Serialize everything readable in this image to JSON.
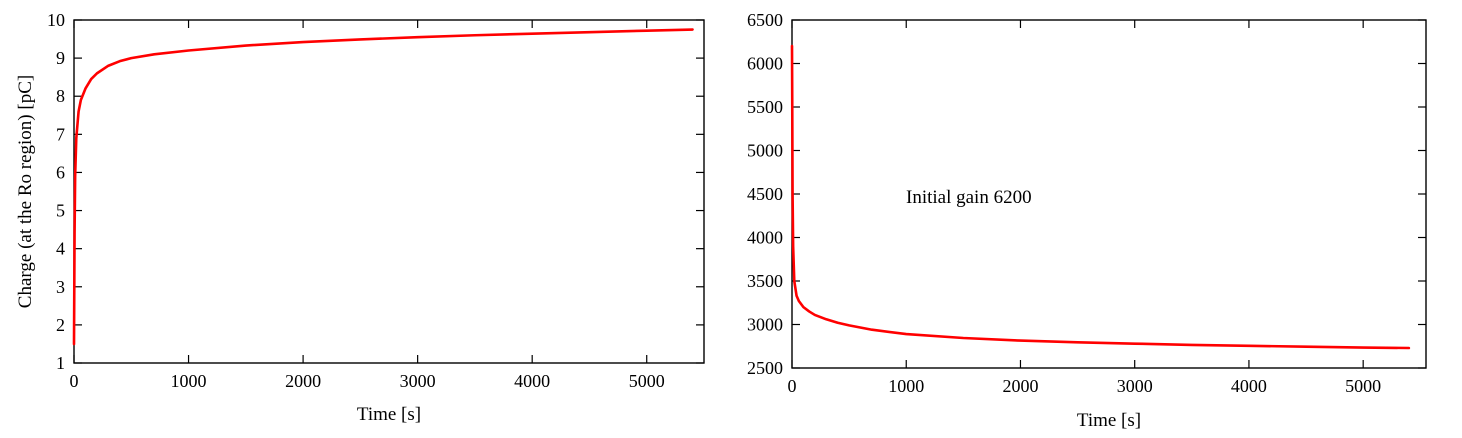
{
  "chart_data": [
    {
      "type": "line",
      "xlabel": "Time [s]",
      "ylabel": "Charge (at the Ro region) [pC]",
      "xlim": [
        0,
        5500
      ],
      "ylim": [
        1,
        10
      ],
      "xticks": [
        "0",
        "1000",
        "2000",
        "3000",
        "4000",
        "5000"
      ],
      "yticks": [
        "1",
        "2",
        "3",
        "4",
        "5",
        "6",
        "7",
        "8",
        "9",
        "10"
      ],
      "grid": false,
      "series": [
        {
          "color": "#ff0000",
          "x": [
            0,
            5,
            10,
            20,
            40,
            60,
            100,
            150,
            200,
            300,
            400,
            500,
            700,
            1000,
            1500,
            2000,
            2500,
            3000,
            3500,
            4000,
            4500,
            5000,
            5400
          ],
          "y": [
            1.5,
            4.4,
            5.9,
            6.9,
            7.6,
            7.9,
            8.2,
            8.45,
            8.6,
            8.8,
            8.92,
            9.0,
            9.1,
            9.2,
            9.33,
            9.42,
            9.49,
            9.55,
            9.6,
            9.64,
            9.68,
            9.72,
            9.75
          ]
        }
      ]
    },
    {
      "type": "line",
      "xlabel": "Time [s]",
      "ylabel": "",
      "xlim": [
        0,
        5550
      ],
      "ylim": [
        2500,
        6500
      ],
      "xticks": [
        "0",
        "1000",
        "2000",
        "3000",
        "4000",
        "5000"
      ],
      "yticks": [
        "2500",
        "3000",
        "3500",
        "4000",
        "4500",
        "5000",
        "5500",
        "6000",
        "6500"
      ],
      "grid": false,
      "annotation": "Initial gain 6200",
      "series": [
        {
          "color": "#ff0000",
          "x": [
            0,
            2,
            5,
            10,
            20,
            40,
            60,
            100,
            150,
            200,
            300,
            400,
            500,
            700,
            1000,
            1500,
            2000,
            2500,
            3000,
            3500,
            4000,
            4500,
            5000,
            5400
          ],
          "y": [
            6200,
            5600,
            4500,
            3900,
            3500,
            3330,
            3270,
            3200,
            3150,
            3110,
            3060,
            3020,
            2990,
            2940,
            2890,
            2845,
            2815,
            2795,
            2780,
            2765,
            2755,
            2745,
            2735,
            2730
          ]
        }
      ]
    }
  ]
}
